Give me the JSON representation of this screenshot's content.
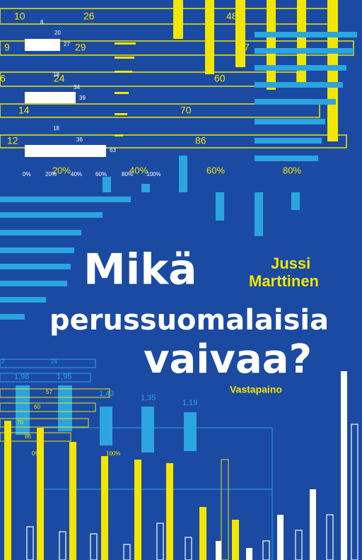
{
  "cover": {
    "title": [
      "Mikä",
      "perussuomalaisia",
      "vaivaa?"
    ],
    "author": [
      "Jussi",
      "Marttinen"
    ],
    "publisher": "Vastapaino"
  },
  "decor": {
    "row_labels": [
      "10",
      "26",
      "48",
      "9",
      "29",
      "7",
      "6",
      "24",
      "60",
      "14",
      "70",
      "12",
      "86"
    ],
    "percent_labels": [
      "20%",
      "40%",
      "60%",
      "80%"
    ],
    "small_labels": [
      "8",
      "20",
      "27",
      "18",
      "34",
      "39",
      "18",
      "36",
      "63",
      "0%",
      "20%",
      "40%",
      "60%",
      "80%",
      "100%"
    ],
    "value_labels": [
      "1,98",
      "1,95",
      "1,43",
      "1,35",
      "1,19"
    ],
    "bottom_labels": [
      "2",
      "24",
      "57",
      "60",
      "70",
      "86",
      "0%",
      "100%"
    ]
  }
}
